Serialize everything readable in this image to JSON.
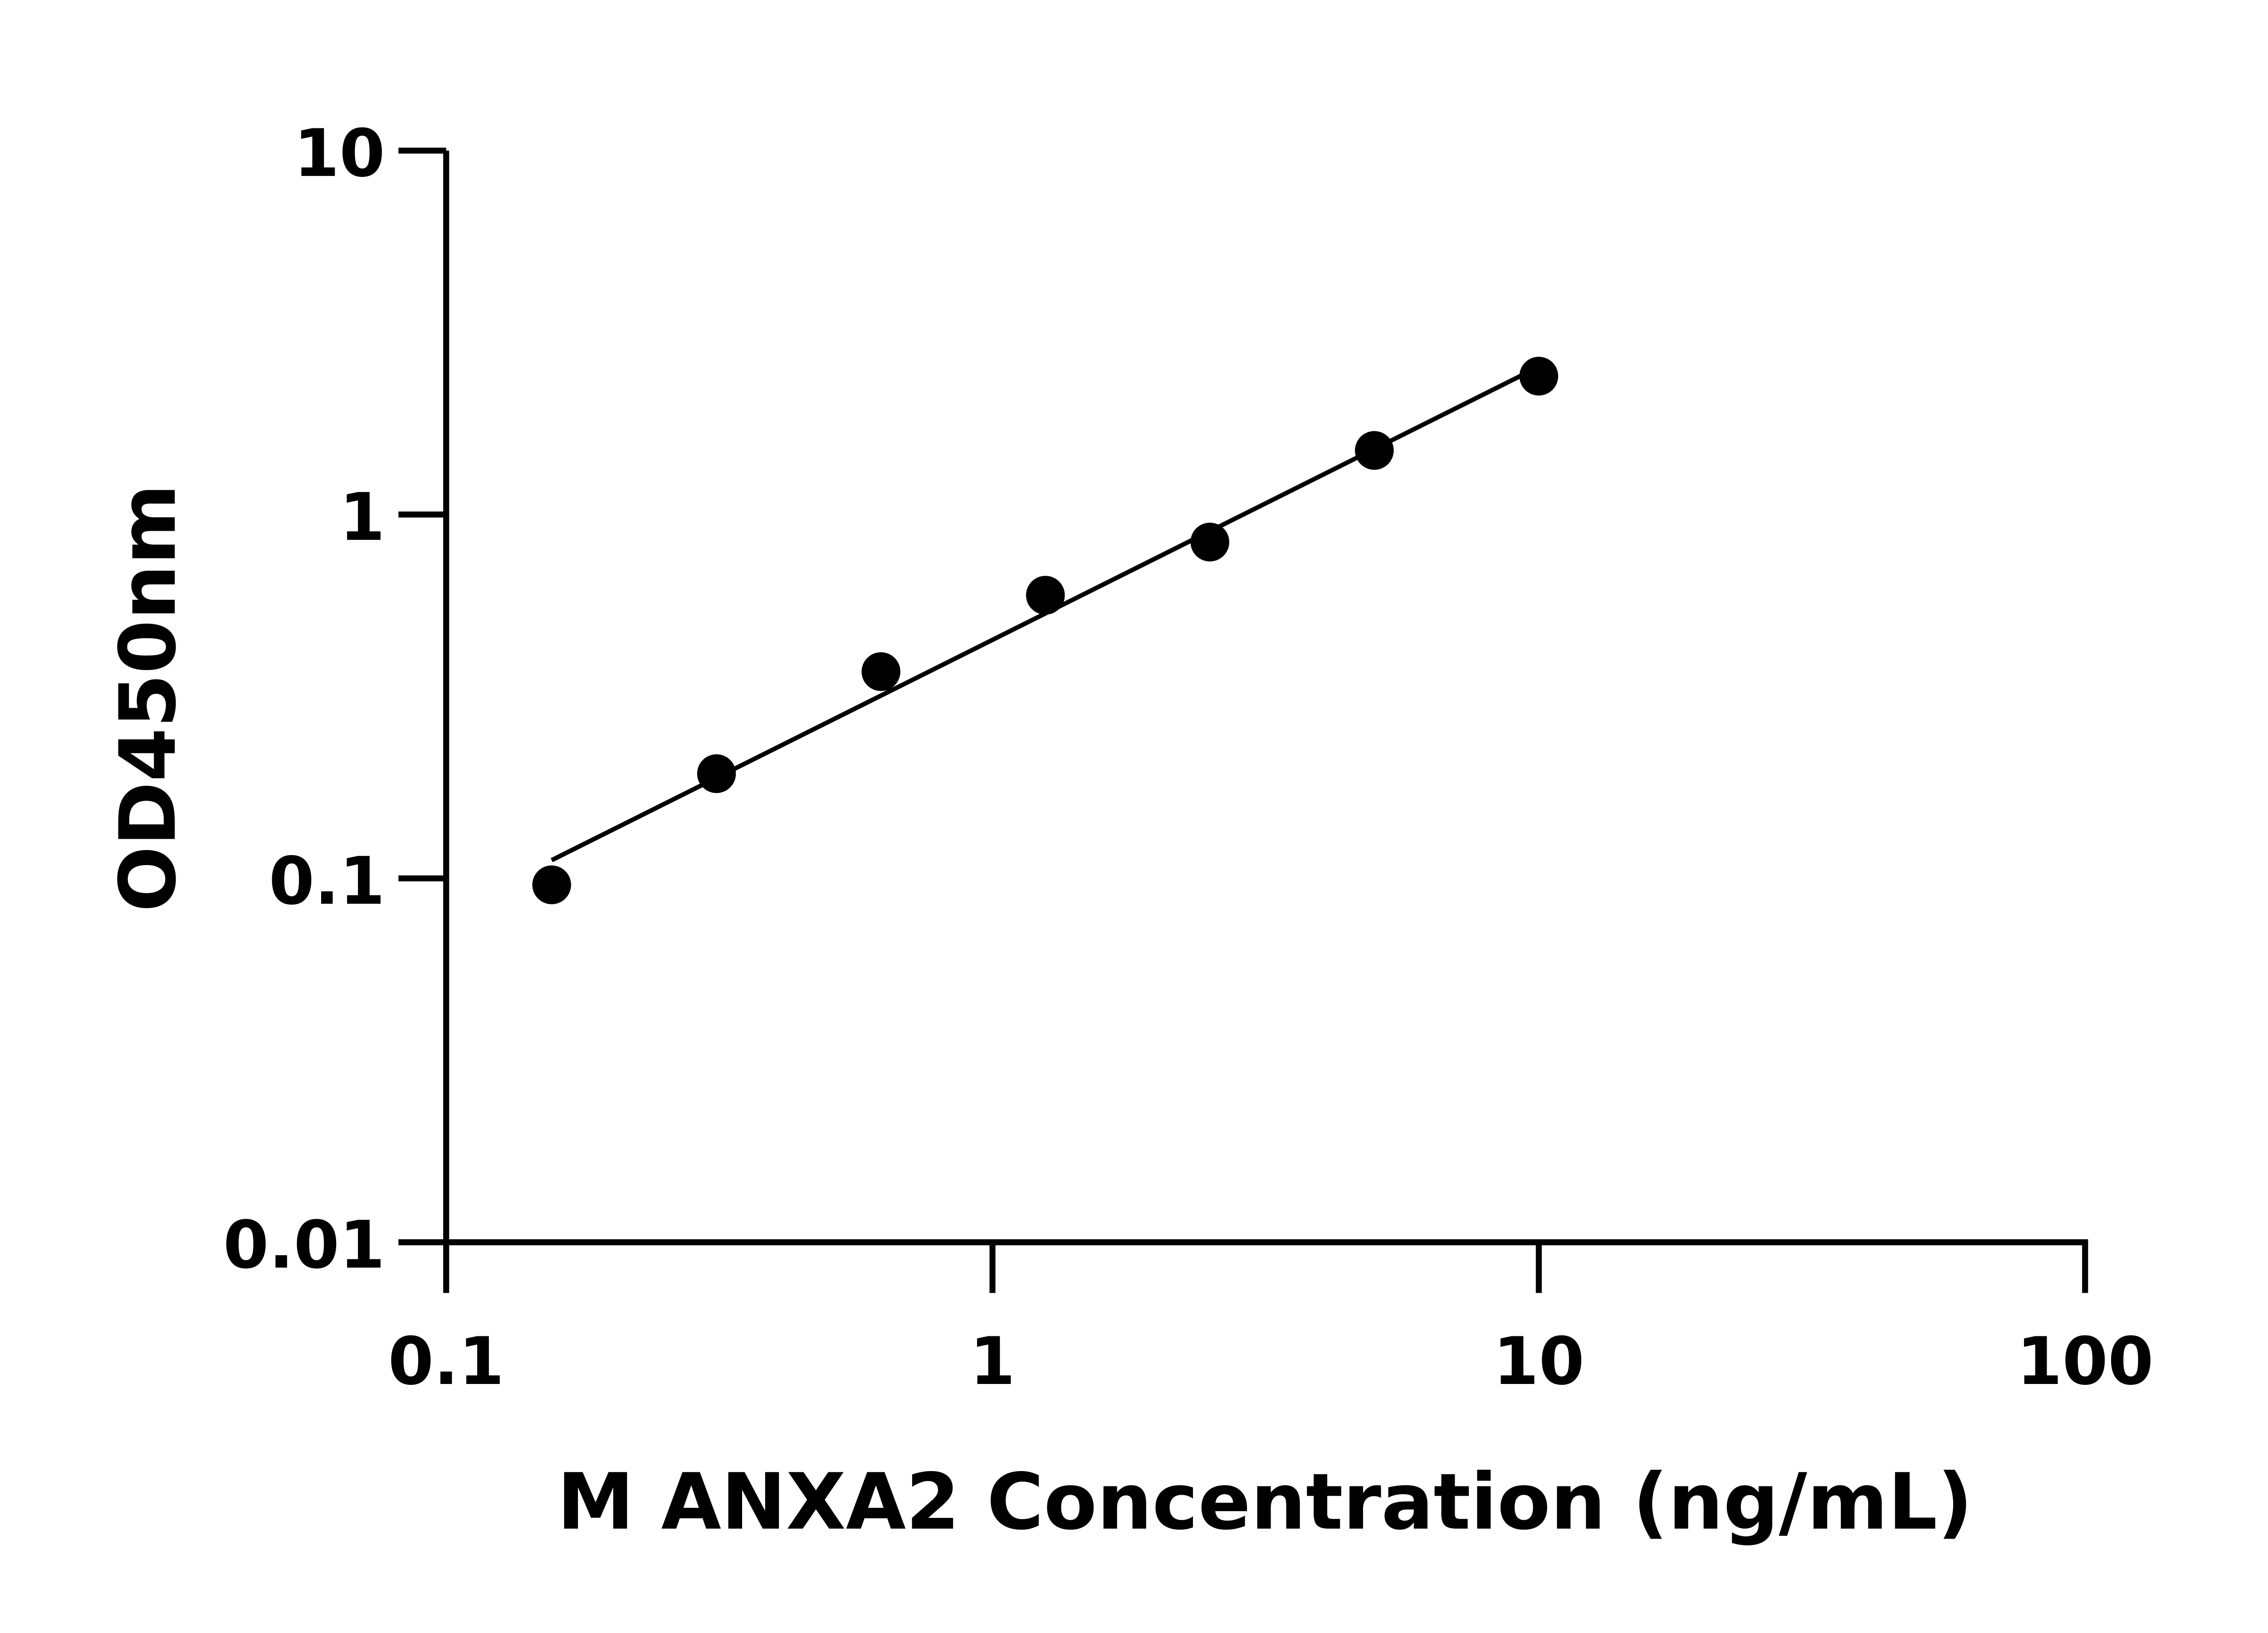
{
  "chart_data": {
    "type": "scatter",
    "title": "",
    "xlabel": "M ANXA2 Concentration (ng/mL)",
    "ylabel": "OD450nm",
    "xscale": "log",
    "yscale": "log",
    "xlim": [
      0.1,
      100
    ],
    "ylim": [
      0.01,
      10
    ],
    "xticks": [
      0.1,
      1,
      10,
      100
    ],
    "xtick_labels": [
      "0.1",
      "1",
      "10",
      "100"
    ],
    "yticks": [
      0.01,
      0.1,
      1,
      10
    ],
    "ytick_labels": [
      "0.01",
      "0.1",
      "1",
      "10"
    ],
    "grid": false,
    "fit_line": "linear fit in log-log space",
    "series": [
      {
        "x": [
          0.156,
          0.3125,
          0.625,
          1.25,
          2.5,
          5,
          10
        ],
        "y": [
          0.096,
          0.194,
          0.37,
          0.6,
          0.84,
          1.5,
          2.4
        ],
        "color": "#000000"
      }
    ]
  }
}
